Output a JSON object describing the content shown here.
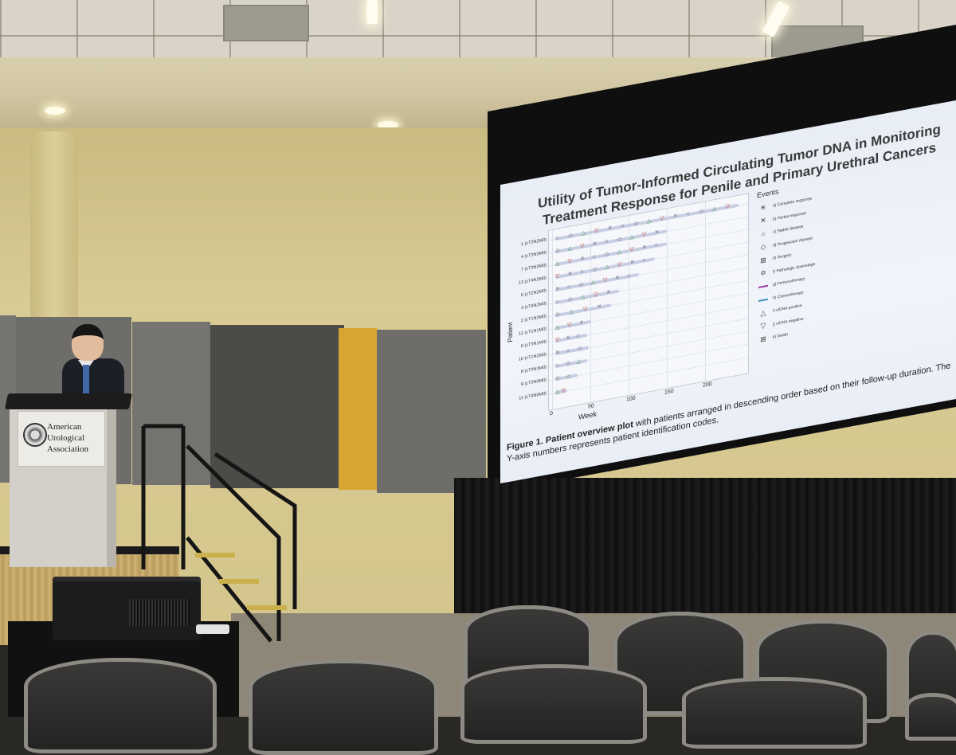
{
  "slide": {
    "title_line1": "Utility of Tumor-Informed Circulating Tumor DNA in Monitoring",
    "title_line2": "Treatment Response for Penile and Primary Urethral Cancers",
    "caption_bold": "Figure 1. Patient overview plot",
    "caption_rest": " with patients arranged in descending order based on their follow-up duration. The Y-axis numbers represents patient identification codes.",
    "y_axis_title": "Patient",
    "x_axis_title": "Week",
    "x_ticks": [
      "0",
      "50",
      "100",
      "150",
      "200"
    ],
    "patients": [
      "1 (cT3N2M0)",
      "4 (cT3N3M0)",
      "7 (cT3N3M0)",
      "13 (cT4N2M0)",
      "5 (cT2N2M0)",
      "3 (cT4N2M0)",
      "2 (cT1N3M0)",
      "12 (cT1N1M0)",
      "6 (cT3N1M0)",
      "10 (cT1N2M0)",
      "8 (cT3N3M0)",
      "9 (cT3N0M0)",
      "11 (cT4N0M0)"
    ],
    "legend_title": "Events",
    "legend": [
      {
        "symbol": "✳",
        "label": "a) Complete response"
      },
      {
        "symbol": "✕",
        "label": "b) Partial response"
      },
      {
        "symbol": "○",
        "label": "c) Stable disease"
      },
      {
        "symbol": "◇",
        "label": "d) Progressed disease"
      },
      {
        "symbol": "⊠",
        "label": "e) Surgery"
      },
      {
        "symbol": "✡",
        "label": "f) Pathologic downstage"
      },
      {
        "symbol": "",
        "label": "g) Immunotherapy",
        "line_color": "#9b3fa0"
      },
      {
        "symbol": "",
        "label": "h) Chemotherapy",
        "line_color": "#3a8fb7"
      },
      {
        "symbol": "△",
        "label": "i) ctDNA positive"
      },
      {
        "symbol": "▽",
        "label": "j) ctDNA negative"
      },
      {
        "symbol": "⊠",
        "label": "k) Death"
      }
    ]
  },
  "podium": {
    "org_line1": "American",
    "org_line2": "Urological",
    "org_line3": "Association"
  },
  "colors": {
    "wall": "#d4c68d",
    "accent_strip": "#d9a532",
    "slide_bg": "#eef2f8",
    "immunotherapy": "#9b3fa0",
    "chemotherapy": "#3a8fb7",
    "ctdna_positive": "#3c9a4a",
    "ctdna_negative": "#c0392b"
  }
}
